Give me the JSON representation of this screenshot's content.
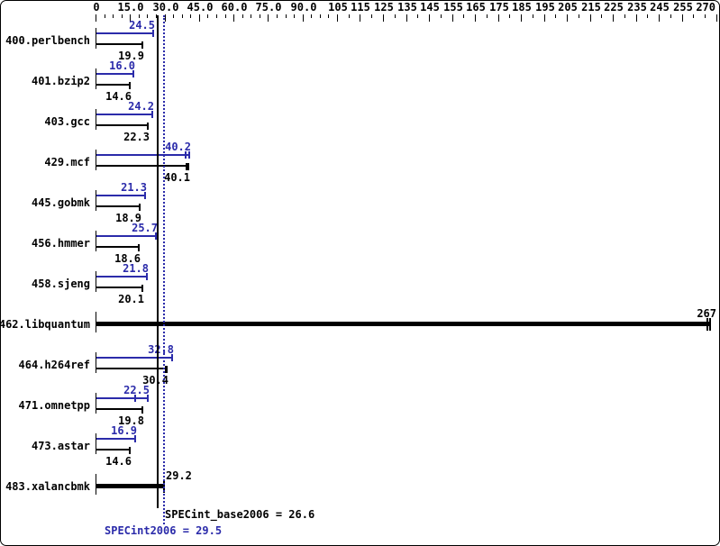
{
  "chart_data": {
    "type": "bar",
    "orientation": "horizontal",
    "xlim": [
      0,
      270
    ],
    "legend": "none",
    "grid": false,
    "axis": {
      "position": "top",
      "break_value": 105,
      "minor_step_low": 3.75,
      "minor_step_high": 5,
      "majors": [
        {
          "v": 0,
          "label": "0"
        },
        {
          "v": 15,
          "label": "15.0"
        },
        {
          "v": 30,
          "label": "30.0"
        },
        {
          "v": 45,
          "label": "45.0"
        },
        {
          "v": 60,
          "label": "60.0"
        },
        {
          "v": 75,
          "label": "75.0"
        },
        {
          "v": 90,
          "label": "90.0"
        },
        {
          "v": 105,
          "label": "105"
        },
        {
          "v": 115,
          "label": "115"
        },
        {
          "v": 125,
          "label": "125"
        },
        {
          "v": 135,
          "label": "135"
        },
        {
          "v": 145,
          "label": "145"
        },
        {
          "v": 155,
          "label": "155"
        },
        {
          "v": 165,
          "label": "165"
        },
        {
          "v": 175,
          "label": "175"
        },
        {
          "v": 185,
          "label": "185"
        },
        {
          "v": 195,
          "label": "195"
        },
        {
          "v": 205,
          "label": "205"
        },
        {
          "v": 215,
          "label": "215"
        },
        {
          "v": 225,
          "label": "225"
        },
        {
          "v": 235,
          "label": "235"
        },
        {
          "v": 245,
          "label": "245"
        },
        {
          "v": 255,
          "label": "255"
        },
        {
          "v": 270,
          "label": "270"
        }
      ]
    },
    "series": [
      {
        "name": "peak",
        "color": "#2b2baa"
      },
      {
        "name": "base",
        "color": "#000000"
      }
    ],
    "benchmarks": [
      {
        "name": "400.perlbench",
        "peak": 24.5,
        "peak_label": "24.5",
        "base": 19.9,
        "base_label": "19.9"
      },
      {
        "name": "401.bzip2",
        "peak": 16.0,
        "peak_label": "16.0",
        "base": 14.6,
        "base_label": "14.6"
      },
      {
        "name": "403.gcc",
        "peak": 24.2,
        "peak_label": "24.2",
        "base": 22.3,
        "base_label": "22.3"
      },
      {
        "name": "429.mcf",
        "peak": 40.2,
        "peak_label": "40.2",
        "base": 40.1,
        "base_label": "40.1",
        "peak_marks": [
          38.9
        ],
        "base_marks": [
          39.0
        ]
      },
      {
        "name": "445.gobmk",
        "peak": 21.3,
        "peak_label": "21.3",
        "base": 18.9,
        "base_label": "18.9"
      },
      {
        "name": "456.hmmer",
        "peak": 25.7,
        "peak_label": "25.7",
        "base": 18.6,
        "base_label": "18.6"
      },
      {
        "name": "458.sjeng",
        "peak": 21.8,
        "peak_label": "21.8",
        "base": 20.1,
        "base_label": "20.1"
      },
      {
        "name": "462.libquantum",
        "single": 267,
        "label": "267",
        "label_align": "right_border",
        "marks": [
          265.8
        ]
      },
      {
        "name": "464.h264ref",
        "peak": 32.8,
        "peak_label": "32.8",
        "base": 30.4,
        "base_label": "30.4",
        "base_marks": [
          30.0
        ]
      },
      {
        "name": "471.omnetpp",
        "peak": 22.5,
        "peak_label": "22.5",
        "base": 19.8,
        "base_label": "19.8",
        "peak_marks": [
          17.0
        ]
      },
      {
        "name": "473.astar",
        "peak": 16.9,
        "peak_label": "16.9",
        "base": 14.6,
        "base_label": "14.6"
      },
      {
        "name": "483.xalancbmk",
        "single": 29.2,
        "label": "29.2",
        "label_align": "right_of_end"
      }
    ],
    "scores": {
      "base": {
        "text": "SPECint_base2006 = 26.6",
        "value": 26.6,
        "style": "solid",
        "color": "#000000"
      },
      "peak": {
        "text": "SPECint2006 = 29.5",
        "value": 29.5,
        "style": "dotted",
        "color": "#2b2baa"
      }
    }
  }
}
